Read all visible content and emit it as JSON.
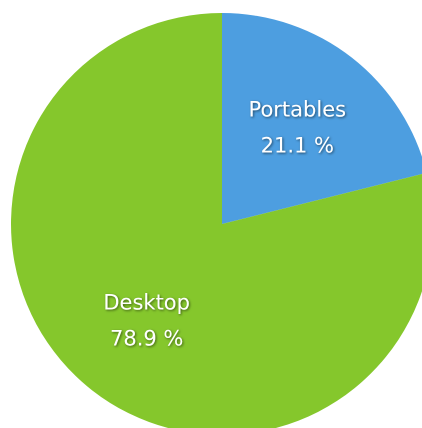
{
  "chart_data": {
    "type": "pie",
    "categories": [
      "Portables",
      "Desktop"
    ],
    "values": [
      21.1,
      78.9
    ],
    "value_labels": [
      "21.1 %",
      "78.9 %"
    ],
    "colors": [
      "#4d9ee0",
      "#85c72c"
    ]
  }
}
